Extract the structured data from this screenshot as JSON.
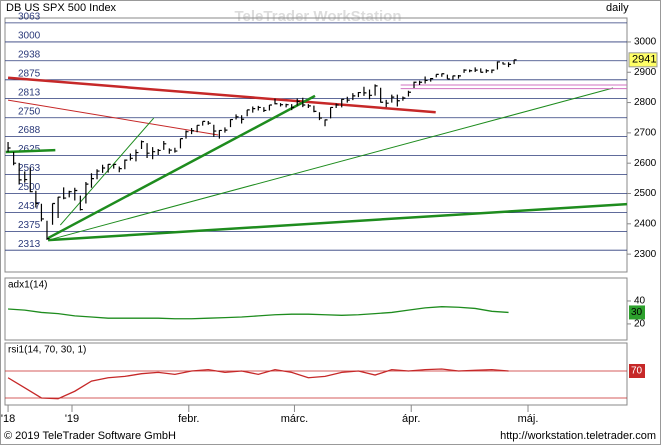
{
  "chart_data": {
    "type": "ohlc",
    "title": "DB US SPX 500 Index",
    "interval": "daily",
    "watermark": "TeleTrader WorkStation",
    "footer_left": "© 2019 TeleTrader Software GmbH",
    "footer_right": "http://workstation.teletrader.com",
    "color": "#000000",
    "x": [
      0,
      1,
      2,
      3,
      4,
      5,
      6,
      7,
      8,
      9,
      10,
      11,
      12,
      13,
      14,
      15,
      16,
      17,
      18,
      19,
      20,
      21,
      22,
      23,
      24,
      25,
      26,
      27,
      28,
      29,
      30,
      31,
      32,
      33,
      34,
      35,
      36,
      37,
      38,
      39,
      40,
      41,
      42,
      43,
      44,
      45,
      46,
      47,
      48,
      49,
      50,
      51,
      52,
      53,
      54,
      55,
      56,
      57,
      58,
      59,
      60,
      61,
      62,
      63,
      64,
      65,
      66,
      67,
      68,
      69,
      70,
      71,
      72,
      73,
      74,
      75,
      76,
      77,
      78,
      79,
      80,
      81,
      82,
      83,
      84,
      85,
      86,
      87,
      88,
      89,
      90,
      91
    ],
    "high": [
      2670,
      2637,
      2601,
      2573,
      2585,
      2509,
      2466,
      2410,
      2467,
      2489,
      2520,
      2509,
      2519,
      2493,
      2538,
      2567,
      2580,
      2595,
      2597,
      2597,
      2589,
      2612,
      2632,
      2645,
      2675,
      2666,
      2653,
      2647,
      2673,
      2649,
      2651,
      2681,
      2708,
      2716,
      2725,
      2738,
      2739,
      2727,
      2709,
      2718,
      2745,
      2761,
      2758,
      2776,
      2787,
      2789,
      2785,
      2792,
      2813,
      2798,
      2796,
      2795,
      2814,
      2816,
      2795,
      2790,
      2768,
      2744,
      2784,
      2797,
      2812,
      2819,
      2831,
      2835,
      2852,
      2843,
      2860,
      2849,
      2809,
      2826,
      2826,
      2820,
      2839,
      2869,
      2872,
      2886,
      2881,
      2893,
      2896,
      2892,
      2889,
      2891,
      2910,
      2909,
      2916,
      2913,
      2910,
      2909,
      2936,
      2934,
      2933,
      2941
    ],
    "low": [
      2637,
      2593,
      2531,
      2536,
      2504,
      2454,
      2408,
      2347,
      2397,
      2419,
      2481,
      2487,
      2477,
      2444,
      2467,
      2519,
      2547,
      2568,
      2569,
      2582,
      2570,
      2580,
      2609,
      2606,
      2647,
      2617,
      2613,
      2627,
      2644,
      2631,
      2635,
      2649,
      2681,
      2696,
      2702,
      2724,
      2727,
      2687,
      2681,
      2701,
      2719,
      2744,
      2731,
      2755,
      2767,
      2774,
      2769,
      2774,
      2794,
      2787,
      2784,
      2775,
      2790,
      2785,
      2782,
      2768,
      2742,
      2722,
      2748,
      2782,
      2784,
      2800,
      2808,
      2818,
      2822,
      2811,
      2823,
      2800,
      2785,
      2800,
      2787,
      2806,
      2820,
      2848,
      2858,
      2863,
      2869,
      2883,
      2885,
      2878,
      2874,
      2879,
      2898,
      2900,
      2901,
      2899,
      2898,
      2897,
      2909,
      2926,
      2917,
      2927
    ],
    "close": [
      2650,
      2600,
      2545,
      2546,
      2506,
      2467,
      2416,
      2351,
      2467,
      2488,
      2485,
      2506,
      2510,
      2447,
      2531,
      2549,
      2574,
      2584,
      2596,
      2596,
      2582,
      2610,
      2616,
      2635,
      2671,
      2633,
      2638,
      2642,
      2664,
      2643,
      2640,
      2681,
      2704,
      2707,
      2725,
      2738,
      2732,
      2706,
      2708,
      2709,
      2744,
      2753,
      2745,
      2776,
      2780,
      2784,
      2774,
      2792,
      2796,
      2793,
      2793,
      2784,
      2804,
      2792,
      2789,
      2771,
      2749,
      2743,
      2784,
      2792,
      2811,
      2808,
      2822,
      2833,
      2832,
      2824,
      2855,
      2801,
      2798,
      2818,
      2806,
      2815,
      2834,
      2867,
      2867,
      2873,
      2879,
      2893,
      2895,
      2878,
      2888,
      2888,
      2907,
      2905,
      2907,
      2900,
      2905,
      2907,
      2934,
      2927,
      2926,
      2941
    ],
    "xlim": [
      -0.55,
      111.3
    ],
    "xticks": [
      {
        "value": 0,
        "label": "'18"
      },
      {
        "value": 11.5,
        "label": "'19"
      },
      {
        "value": 32.5,
        "label": "febr."
      },
      {
        "value": 51.5,
        "label": "márc."
      },
      {
        "value": 72.5,
        "label": "ápr."
      },
      {
        "value": 93.5,
        "label": "máj."
      }
    ],
    "ylim": [
      2241,
      3079
    ],
    "yticks": [
      2300,
      2400,
      2500,
      2600,
      2700,
      2800,
      2900,
      3000
    ],
    "levels": [
      3063,
      3000,
      2938,
      2875,
      2813,
      2750,
      2688,
      2625,
      2563,
      2500,
      2437,
      2375,
      2313
    ],
    "level_color": "#2b3a7a",
    "last_value_color": "#ffff66",
    "trendlines": [
      {
        "x": [
          0,
          76.9
        ],
        "y": [
          2882,
          2768
        ],
        "color": "#c62828",
        "weight": "bold"
      },
      {
        "x": [
          0,
          37.8
        ],
        "y": [
          2808,
          2693
        ],
        "color": "#c62828",
        "weight": "thin"
      },
      {
        "x": [
          7.2,
          55.2
        ],
        "y": [
          2353,
          2822
        ],
        "color": "#1e8c1e",
        "weight": "bold"
      },
      {
        "x": [
          7.2,
          111.3
        ],
        "y": [
          2346,
          2465
        ],
        "color": "#1e8c1e",
        "weight": "bold"
      },
      {
        "x": [
          7.2,
          108.8
        ],
        "y": [
          2346,
          2848
        ],
        "color": "#1e8c1e",
        "weight": "thin"
      },
      {
        "x": [
          9.4,
          26.2
        ],
        "y": [
          2396,
          2749
        ],
        "color": "#1e8c1e",
        "weight": "thin"
      },
      {
        "x": [
          -0.4,
          8.5
        ],
        "y": [
          2637,
          2643
        ],
        "color": "#1e8c1e",
        "weight": "bold"
      },
      {
        "x": [
          70.6,
          111.3
        ],
        "y": [
          2858,
          2858
        ],
        "color": "#d070c0",
        "weight": "thin"
      },
      {
        "x": [
          70.6,
          111.3
        ],
        "y": [
          2846,
          2846
        ],
        "color": "#d070c0",
        "weight": "thin"
      }
    ],
    "panels": [
      {
        "type": "line",
        "title": "adx1(14)",
        "color": "#1e8c1e",
        "last_value_color": "#2ca02c",
        "x": [
          0,
          3,
          6,
          9,
          12,
          15,
          18,
          21,
          24,
          27,
          30,
          33,
          36,
          39,
          42,
          45,
          48,
          51,
          54,
          57,
          60,
          63,
          66,
          69,
          72,
          75,
          78,
          81,
          84,
          87,
          90
        ],
        "values": [
          33,
          32,
          30,
          29,
          27,
          26,
          25,
          25,
          25,
          25,
          24.5,
          24.5,
          25,
          25.5,
          26,
          27,
          28,
          28.5,
          28.5,
          28,
          27.5,
          28,
          29,
          30,
          32,
          34,
          35,
          34.5,
          33.5,
          31,
          30
        ],
        "ylim": [
          6,
          60
        ],
        "yticks": [
          20,
          40
        ]
      },
      {
        "type": "line",
        "title": "rsi1(14, 70, 30, 1)",
        "color": "#c62828",
        "last_value_color": "#c62828",
        "x": [
          0,
          3,
          6,
          9,
          12,
          15,
          18,
          21,
          24,
          27,
          30,
          33,
          36,
          39,
          42,
          45,
          48,
          51,
          54,
          57,
          60,
          63,
          66,
          69,
          72,
          75,
          78,
          81,
          84,
          87,
          90
        ],
        "values": [
          60,
          45,
          30,
          29,
          40,
          55,
          60,
          62,
          66,
          68,
          65,
          70,
          72,
          68,
          70,
          65,
          72,
          68,
          60,
          62,
          68,
          70,
          64,
          72,
          70,
          72,
          73,
          70,
          71,
          72,
          70
        ],
        "ylim": [
          19.6,
          111.5
        ],
        "levels": [
          70,
          30
        ],
        "level_color": "#c62828"
      }
    ]
  }
}
